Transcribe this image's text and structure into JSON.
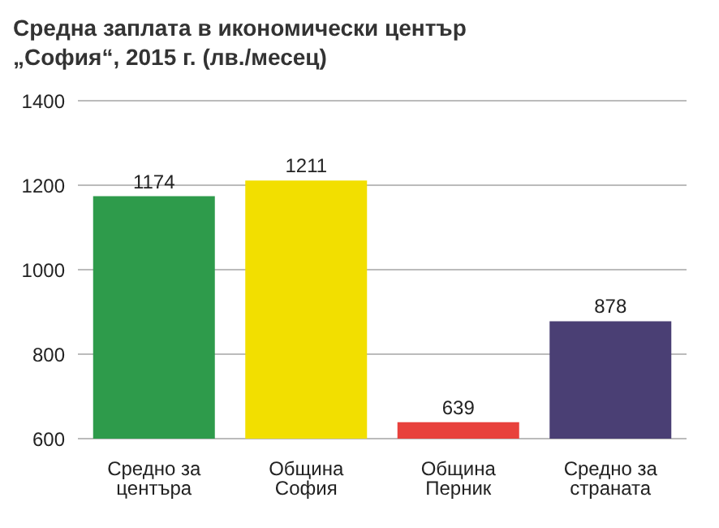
{
  "chart_data": {
    "type": "bar",
    "title": "Средна заплата в икономически център „София“, 2015 г. (лв./месец)",
    "categories": [
      "Средно за центъра",
      "Община София",
      "Община Перник",
      "Средно за страната"
    ],
    "values": [
      1174,
      1211,
      639,
      878
    ],
    "colors": [
      "#2e9b4b",
      "#f2df00",
      "#e8413c",
      "#4a3f74"
    ],
    "ylim": [
      600,
      1400
    ],
    "yticks": [
      600,
      800,
      1000,
      1200,
      1400
    ],
    "grid": "y",
    "data_labels": true
  }
}
